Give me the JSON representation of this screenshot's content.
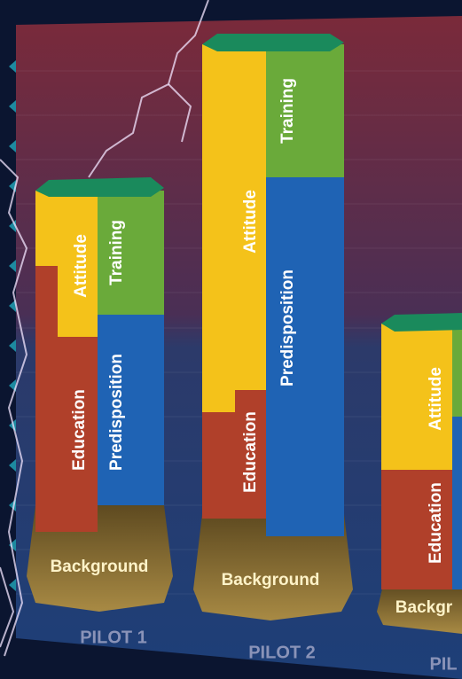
{
  "columns": [
    {
      "label": "PILOT 1",
      "segments": {
        "background": "Background",
        "education": "Education",
        "predisposition": "Predisposition",
        "attitude": "Attitude",
        "training": "Training"
      }
    },
    {
      "label": "PILOT 2",
      "segments": {
        "background": "Background",
        "education": "Education",
        "predisposition": "Predisposition",
        "attitude": "Attitude",
        "training": "Training"
      }
    },
    {
      "label": "PIL",
      "segments": {
        "background": "Backgr",
        "education": "Education",
        "attitude": "Attitude"
      }
    }
  ]
}
